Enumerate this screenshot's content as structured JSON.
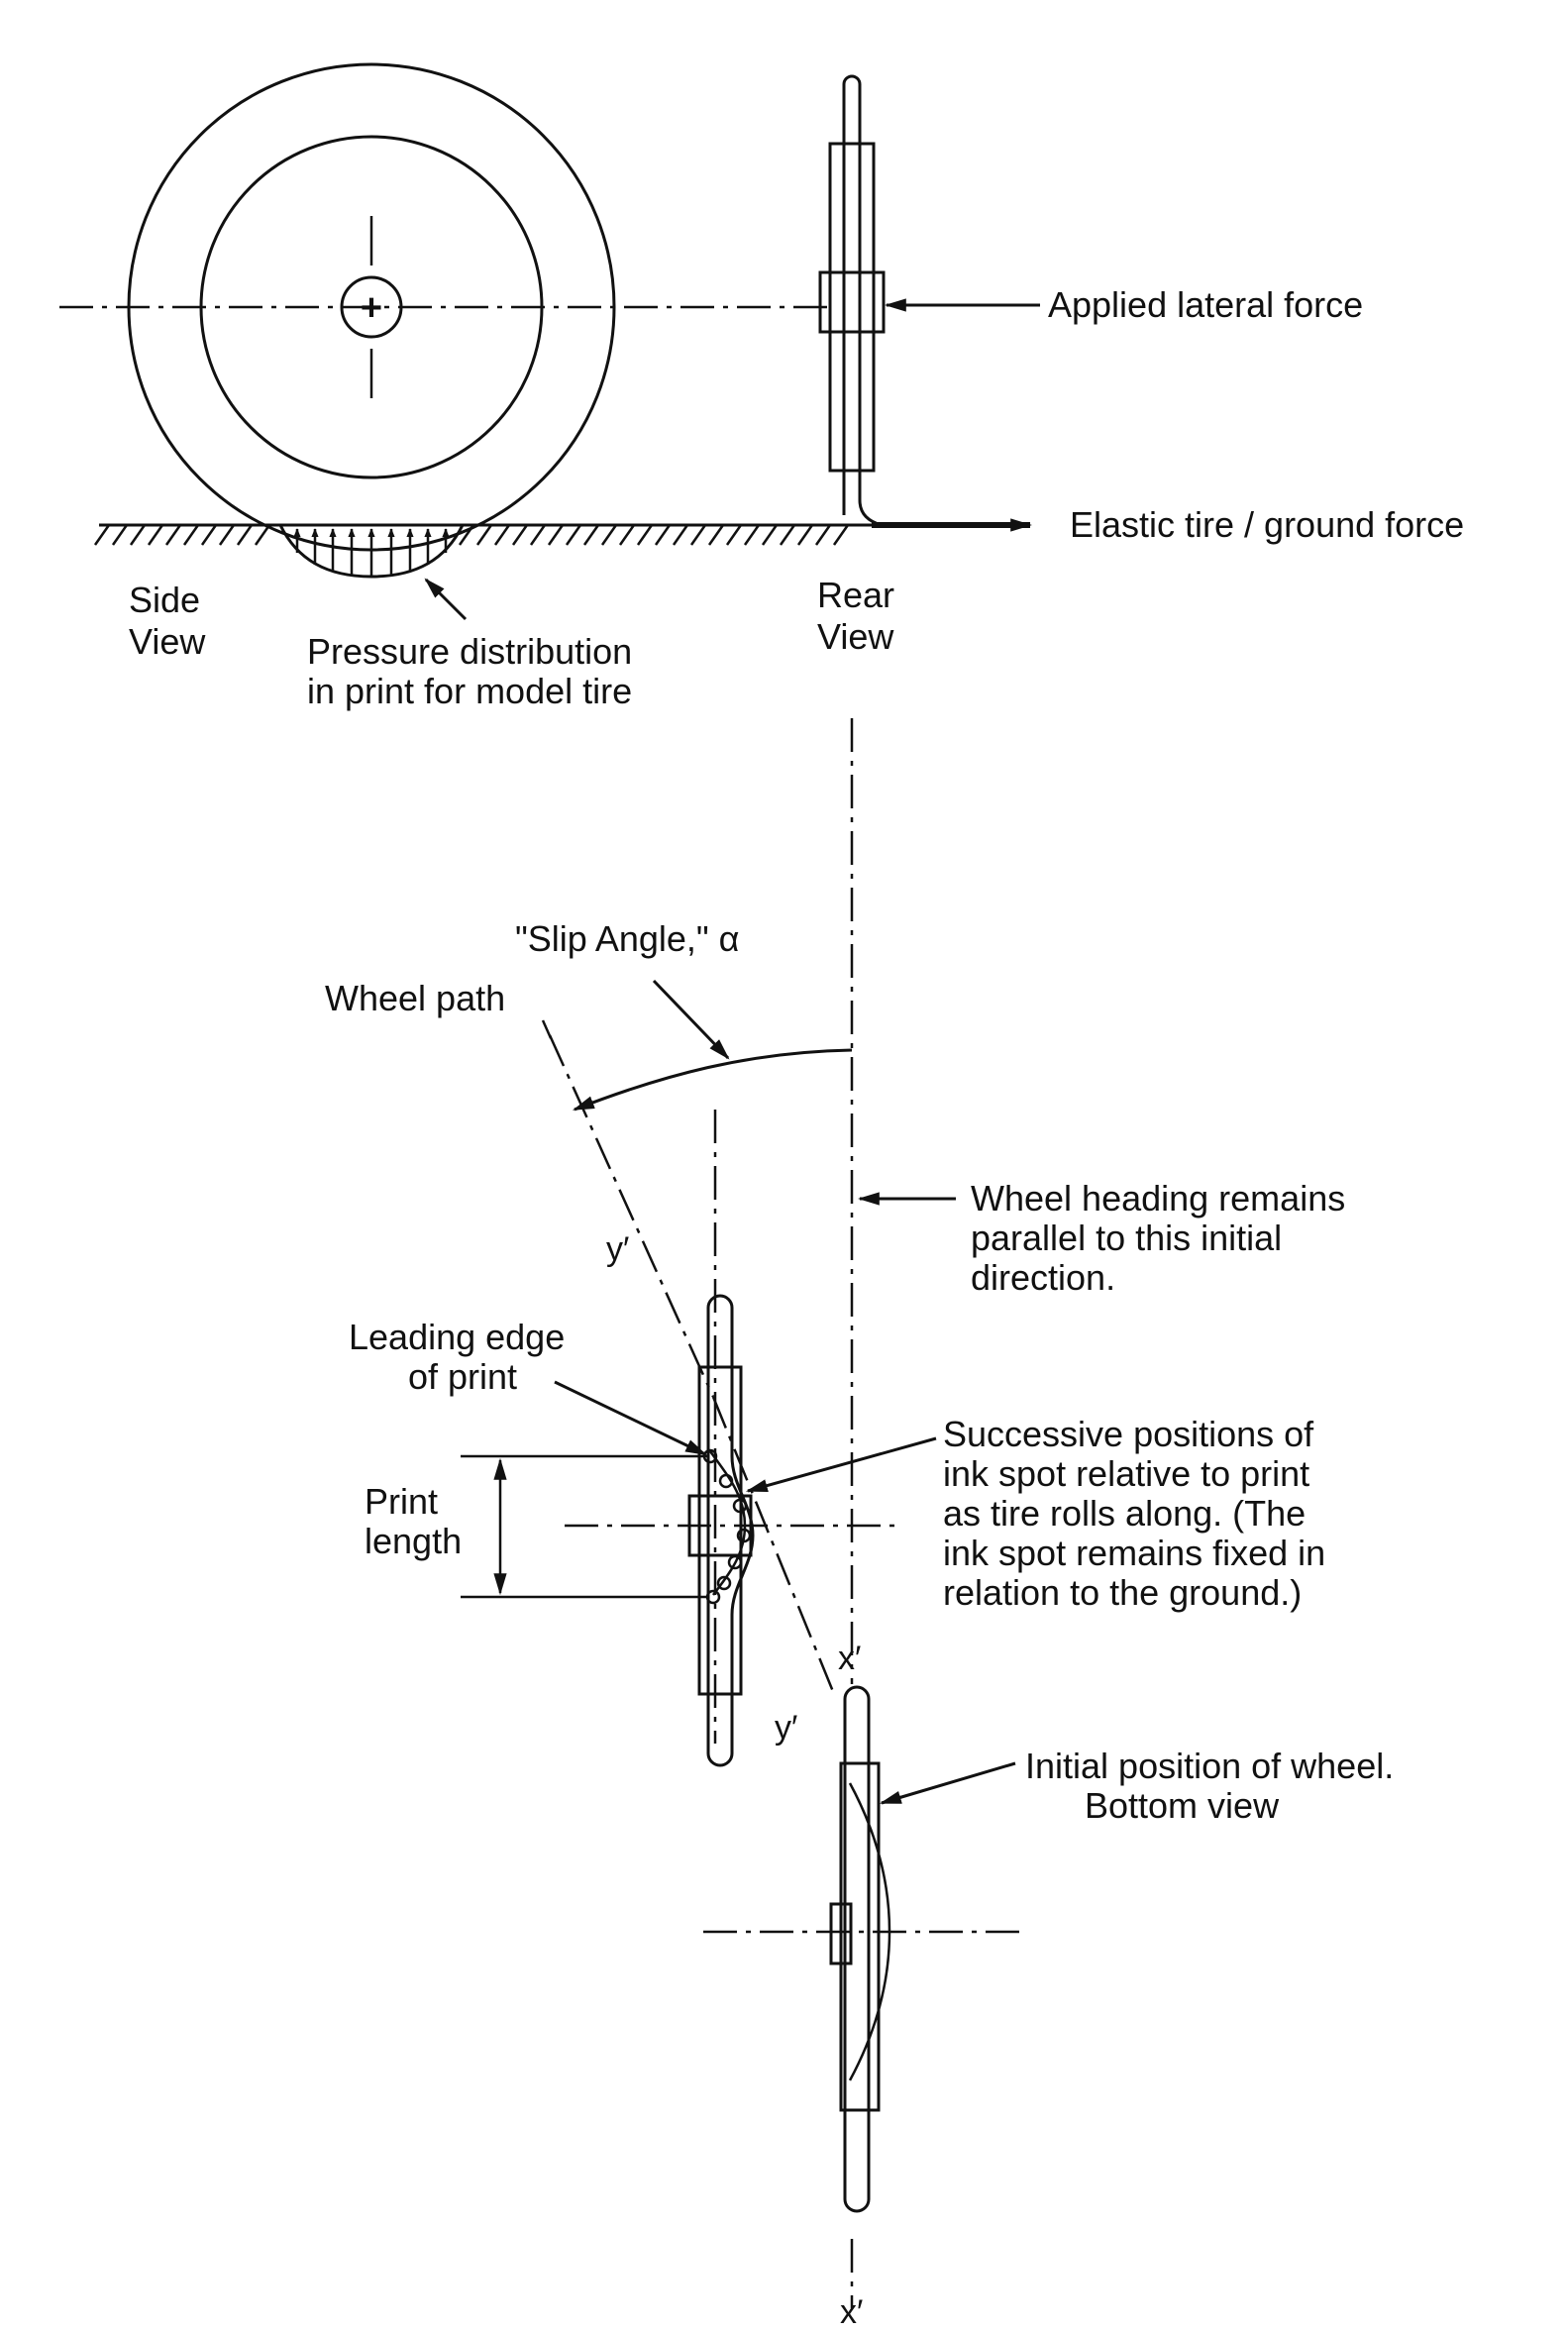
{
  "labels": {
    "applied_lateral_force": "Applied lateral force",
    "elastic_tire_ground_force": "Elastic tire / ground force",
    "side_view": [
      "Side",
      "View"
    ],
    "rear_view": [
      "Rear",
      "View"
    ],
    "pressure_distribution": [
      "Pressure distribution",
      "in print for model tire"
    ],
    "slip_angle": "\"Slip Angle,\" α",
    "wheel_path": "Wheel path",
    "wheel_heading": [
      "Wheel heading remains",
      "parallel to this initial",
      "direction."
    ],
    "leading_edge": [
      "Leading edge",
      "of print"
    ],
    "print_length": [
      "Print",
      "length"
    ],
    "successive_positions": [
      "Successive positions of",
      "ink spot relative to print",
      "as tire rolls along. (The",
      "ink spot remains fixed in",
      "relation to the ground.)"
    ],
    "initial_position": [
      "Initial position of wheel.",
      "Bottom view"
    ],
    "center_mark": "+"
  },
  "axes": {
    "y_prime_upper": "y′",
    "y_prime_lower": "y′",
    "x_prime_upper": "x′",
    "x_prime_lower": "x′"
  },
  "colors": {
    "ink": "#111111",
    "paper": "#ffffff"
  }
}
